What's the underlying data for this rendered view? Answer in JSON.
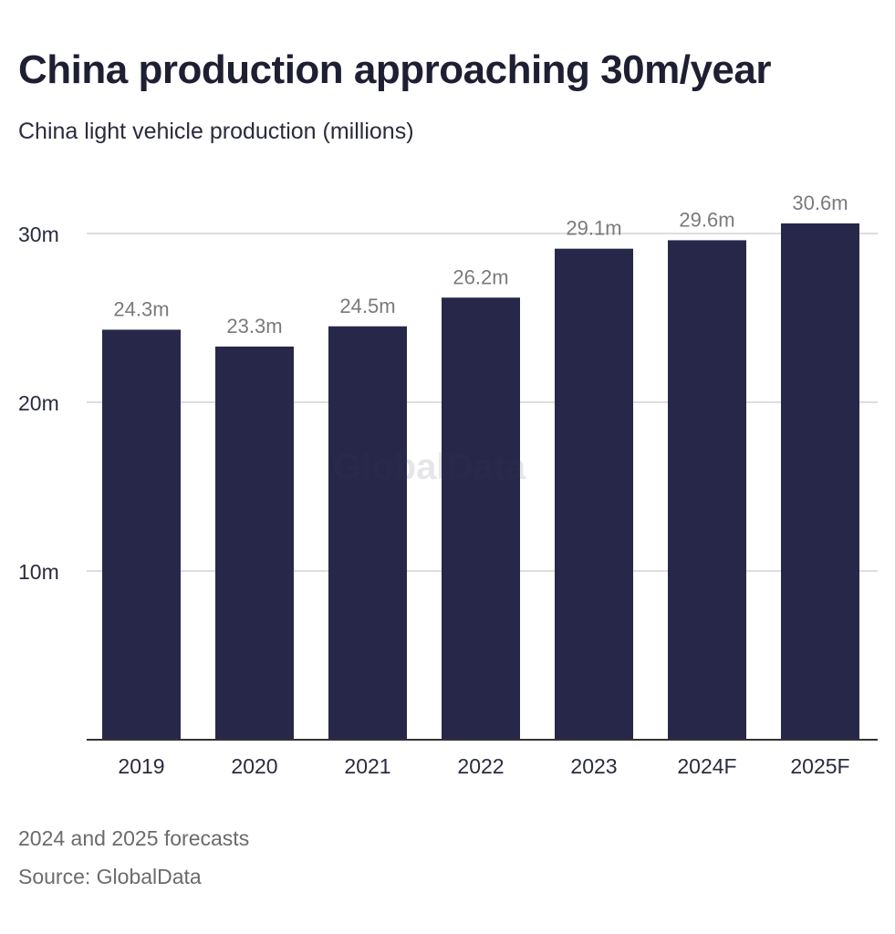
{
  "header": {
    "title": "China production approaching 30m/year",
    "subtitle": "China light vehicle production (millions)"
  },
  "chart_data": {
    "type": "bar",
    "title": "China production approaching 30m/year",
    "subtitle": "China light vehicle production (millions)",
    "categories": [
      "2019",
      "2020",
      "2021",
      "2022",
      "2023",
      "2024F",
      "2025F"
    ],
    "values": [
      24.3,
      23.3,
      24.5,
      26.2,
      29.1,
      29.6,
      30.6
    ],
    "data_labels": [
      "24.3m",
      "23.3m",
      "24.5m",
      "26.2m",
      "29.1m",
      "29.6m",
      "30.6m"
    ],
    "yticks": [
      10,
      20,
      30
    ],
    "ytick_labels": [
      "10m",
      "20m",
      "30m"
    ],
    "ylim": [
      0,
      30
    ],
    "xlabel": "",
    "ylabel": "",
    "grid": true,
    "bar_color": "#272849"
  },
  "watermark": "GlobalData",
  "footer": {
    "note": "2024 and 2025 forecasts",
    "source": "Source: GlobalData"
  }
}
